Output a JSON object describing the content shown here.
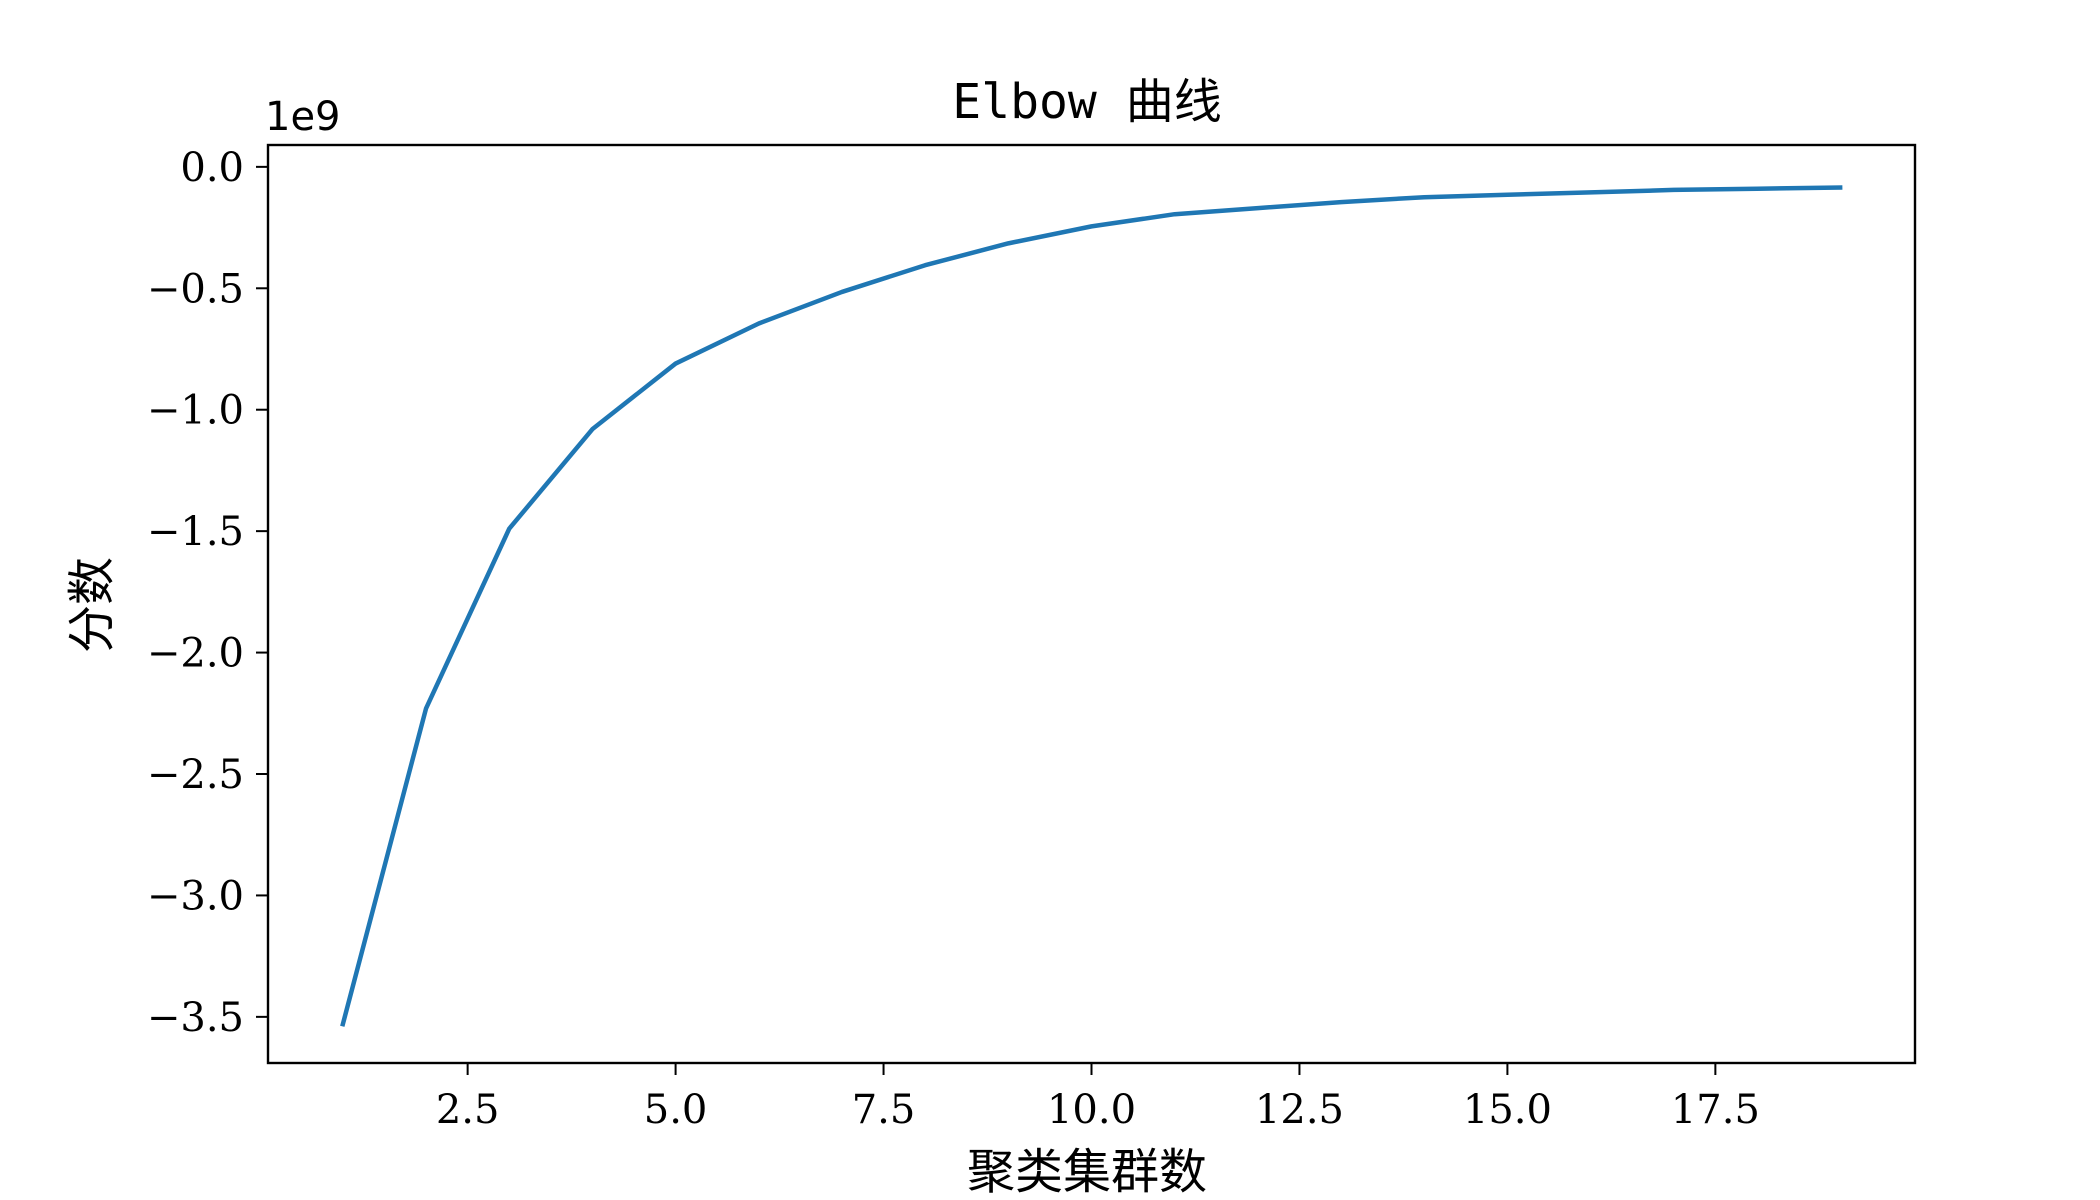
{
  "chart_data": {
    "type": "line",
    "title": "Elbow 曲线",
    "xlabel": "聚类集群数",
    "ylabel": "分数",
    "y_offset_label": "1e9",
    "xlim": [
      0.1,
      19.9
    ],
    "ylim": [
      -3.69,
      0.09
    ],
    "x_ticks": [
      2.5,
      5.0,
      7.5,
      10.0,
      12.5,
      15.0,
      17.5
    ],
    "x_tick_labels": [
      "2.5",
      "5.0",
      "7.5",
      "10.0",
      "12.5",
      "15.0",
      "17.5"
    ],
    "y_ticks": [
      0.0,
      -0.5,
      -1.0,
      -1.5,
      -2.0,
      -2.5,
      -3.0,
      -3.5
    ],
    "y_tick_labels": [
      "0.0",
      "−0.5",
      "−1.0",
      "−1.5",
      "−2.0",
      "−2.5",
      "−3.0",
      "−3.5"
    ],
    "grid": false,
    "series": [
      {
        "color": "#1f77b4",
        "x": [
          1,
          2,
          3,
          4,
          5,
          6,
          7,
          8,
          9,
          10,
          11,
          12,
          13,
          14,
          15,
          16,
          17,
          18,
          19
        ],
        "y": [
          -3.53,
          -2.23,
          -1.49,
          -1.08,
          -0.81,
          -0.645,
          -0.515,
          -0.405,
          -0.315,
          -0.245,
          -0.195,
          -0.17,
          -0.145,
          -0.125,
          -0.115,
          -0.105,
          -0.095,
          -0.09,
          -0.085
        ]
      }
    ]
  }
}
